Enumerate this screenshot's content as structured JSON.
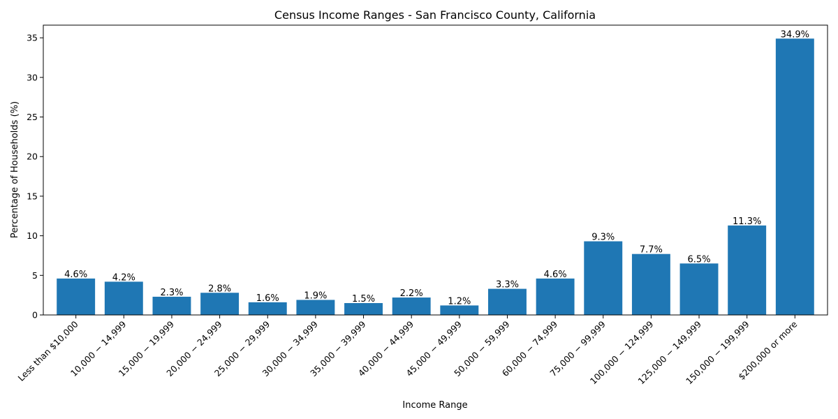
{
  "chart_data": {
    "type": "bar",
    "title": "Census Income Ranges - San Francisco County, California",
    "xlabel": "Income Range",
    "ylabel": "Percentage of Households (%)",
    "categories": [
      "Less than $10,000",
      "10,000 − 14,999",
      "15,000 − 19,999",
      "20,000 − 24,999",
      "25,000 − 29,999",
      "30,000 − 34,999",
      "35,000 − 39,999",
      "40,000 − 44,999",
      "45,000 − 49,999",
      "50,000 − 59,999",
      "60,000 − 74,999",
      "75,000 − 99,999",
      "100,000 − 124,999",
      "125,000 − 149,999",
      "150,000 − 199,999",
      "$200,000 or more"
    ],
    "values": [
      4.6,
      4.2,
      2.3,
      2.8,
      1.6,
      1.9,
      1.5,
      2.2,
      1.2,
      3.3,
      4.6,
      9.3,
      7.7,
      6.5,
      11.3,
      34.9
    ],
    "value_labels": [
      "4.6%",
      "4.2%",
      "2.3%",
      "2.8%",
      "1.6%",
      "1.9%",
      "1.5%",
      "2.2%",
      "1.2%",
      "3.3%",
      "4.6%",
      "9.3%",
      "7.7%",
      "6.5%",
      "11.3%",
      "34.9%"
    ],
    "y_ticks": [
      0,
      5,
      10,
      15,
      20,
      25,
      30,
      35
    ],
    "y_tick_labels": [
      "0",
      "5",
      "10",
      "15",
      "20",
      "25",
      "30",
      "35"
    ],
    "ylim": [
      0,
      36.6
    ],
    "grid": false,
    "bar_color": "#1f77b4"
  }
}
